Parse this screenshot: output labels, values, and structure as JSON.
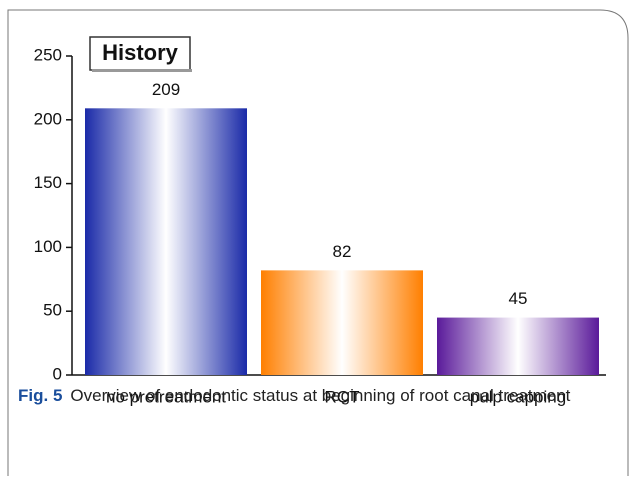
{
  "chart_data": {
    "type": "bar",
    "title": "History",
    "categories": [
      "no pretreatment",
      "RCT",
      "pulp capping"
    ],
    "values": [
      209,
      82,
      45
    ],
    "colors": [
      "#1a2aa8",
      "#ff7f00",
      "#5a1a9a"
    ],
    "ylim": [
      0,
      250
    ],
    "yticks": [
      0,
      50,
      100,
      150,
      200,
      250
    ],
    "grid": false
  },
  "caption": {
    "label": "Fig. 5",
    "text": "Overview of endodontic status at beginning of root canal treatment"
  }
}
